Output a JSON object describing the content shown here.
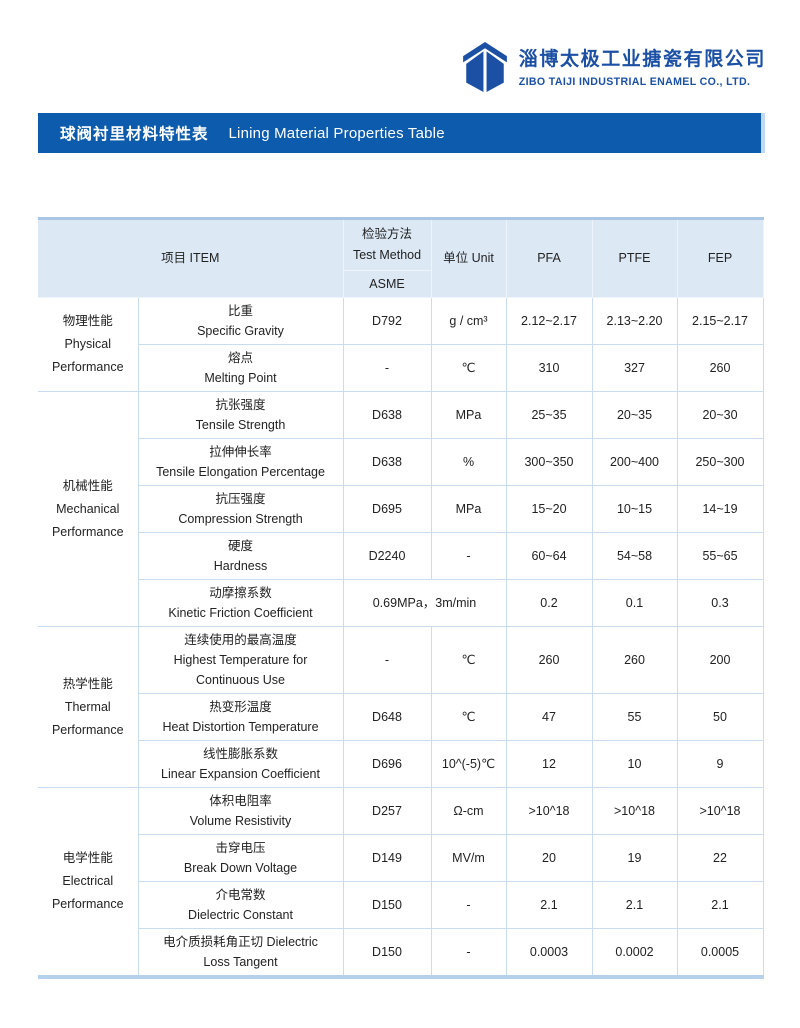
{
  "company": {
    "name_zh": "淄博太极工业搪瓷有限公司",
    "name_en": "ZIBO TAIJI INDUSTRIAL ENAMEL CO., LTD.",
    "logo_icon": "taiji-building-logo-icon",
    "brand_color": "#1b50a4"
  },
  "banner": {
    "title_zh": "球阀衬里材料特性表",
    "title_en": "Lining Material Properties Table",
    "bg_color": "#0d5bac"
  },
  "table": {
    "header": {
      "item": "项目 ITEM",
      "test_method_zh": "检验方法",
      "test_method_en": "Test Method",
      "test_method_std": "ASME",
      "unit": "单位 Unit",
      "materials": [
        "PFA",
        "PTFE",
        "FEP"
      ]
    },
    "groups": [
      {
        "category_zh": "物理性能",
        "category_en_lines": [
          "Physical",
          "Performance"
        ],
        "rows": [
          {
            "item_lines": [
              "比重",
              "Specific Gravity"
            ],
            "method": "D792",
            "unit": "g / cm³",
            "values": [
              "2.12~2.17",
              "2.13~2.20",
              "2.15~2.17"
            ]
          },
          {
            "item_lines": [
              "熔点",
              "Melting Point"
            ],
            "method": "-",
            "unit": "℃",
            "values": [
              "310",
              "327",
              "260"
            ]
          }
        ]
      },
      {
        "category_zh": "机械性能",
        "category_en_lines": [
          "Mechanical",
          "Performance"
        ],
        "rows": [
          {
            "item_lines": [
              "抗张强度",
              "Tensile Strength"
            ],
            "method": "D638",
            "unit": "MPa",
            "values": [
              "25~35",
              "20~35",
              "20~30"
            ]
          },
          {
            "item_lines": [
              "拉伸伸长率",
              "Tensile Elongation Percentage"
            ],
            "method": "D638",
            "unit": "%",
            "values": [
              "300~350",
              "200~400",
              "250~300"
            ]
          },
          {
            "item_lines": [
              "抗压强度",
              "Compression Strength"
            ],
            "method": "D695",
            "unit": "MPa",
            "values": [
              "15~20",
              "10~15",
              "14~19"
            ]
          },
          {
            "item_lines": [
              "硬度",
              "Hardness"
            ],
            "method": "D2240",
            "unit": "-",
            "values": [
              "60~64",
              "54~58",
              "55~65"
            ]
          },
          {
            "item_lines": [
              "动摩擦系数",
              "Kinetic Friction Coefficient"
            ],
            "method_unit_merged": "0.69MPa，3m/min",
            "values": [
              "0.2",
              "0.1",
              "0.3"
            ]
          }
        ]
      },
      {
        "category_zh": "热学性能",
        "category_en_lines": [
          "Thermal",
          "Performance"
        ],
        "rows": [
          {
            "item_lines": [
              "连续使用的最高温度",
              "Highest Temperature for",
              "Continuous Use"
            ],
            "method": "-",
            "unit": "℃",
            "values": [
              "260",
              "260",
              "200"
            ]
          },
          {
            "item_lines": [
              "热变形温度",
              "Heat Distortion Temperature"
            ],
            "method": "D648",
            "unit": "℃",
            "values": [
              "47",
              "55",
              "50"
            ]
          },
          {
            "item_lines": [
              "线性膨胀系数",
              "Linear Expansion Coefficient"
            ],
            "method": "D696",
            "unit": "10^(-5)℃",
            "values": [
              "12",
              "10",
              "9"
            ]
          }
        ]
      },
      {
        "category_zh": "电学性能",
        "category_en_lines": [
          "Electrical",
          "Performance"
        ],
        "rows": [
          {
            "item_lines": [
              "体积电阻率",
              "Volume Resistivity"
            ],
            "method": "D257",
            "unit": "Ω-cm",
            "values": [
              ">10^18",
              ">10^18",
              ">10^18"
            ]
          },
          {
            "item_lines": [
              "击穿电压",
              "Break Down Voltage"
            ],
            "method": "D149",
            "unit": "MV/m",
            "values": [
              "20",
              "19",
              "22"
            ]
          },
          {
            "item_lines": [
              "介电常数",
              "Dielectric Constant"
            ],
            "method": "D150",
            "unit": "-",
            "values": [
              "2.1",
              "2.1",
              "2.1"
            ]
          },
          {
            "item_lines": [
              "电介质损耗角正切 Dielectric",
              "Loss Tangent"
            ],
            "method": "D150",
            "unit": "-",
            "values": [
              "0.0003",
              "0.0002",
              "0.0005"
            ]
          }
        ]
      }
    ]
  }
}
